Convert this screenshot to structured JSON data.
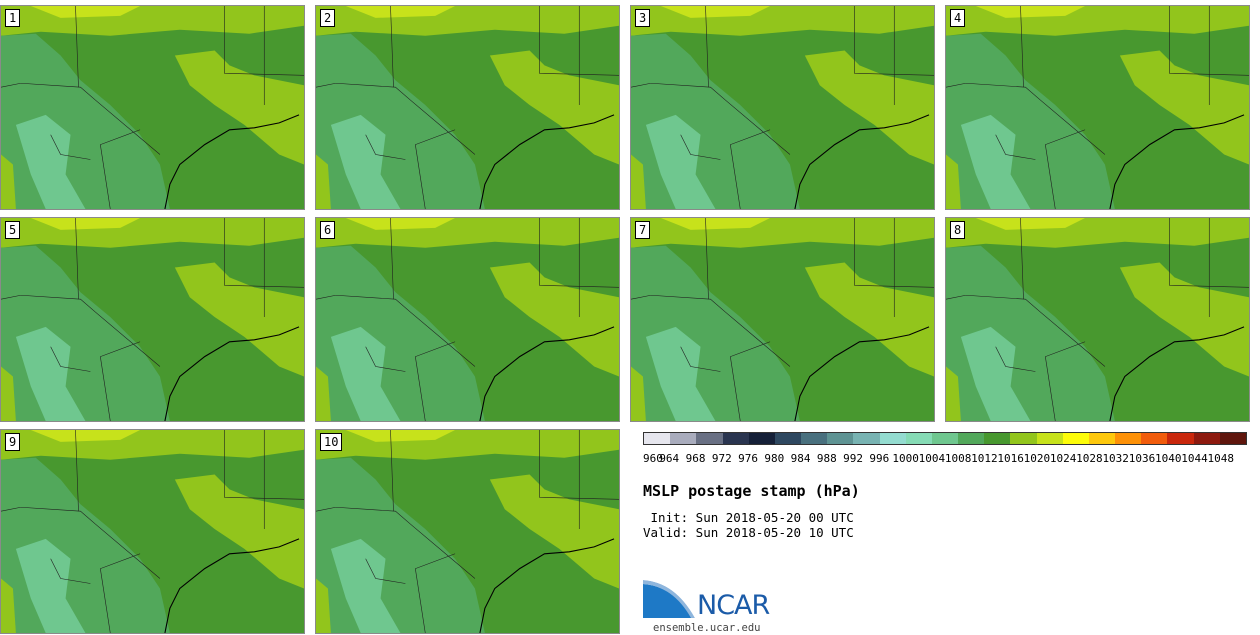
{
  "stamps": [
    {
      "label": "1"
    },
    {
      "label": "2"
    },
    {
      "label": "3"
    },
    {
      "label": "4"
    },
    {
      "label": "5"
    },
    {
      "label": "6"
    },
    {
      "label": "7"
    },
    {
      "label": "8"
    },
    {
      "label": "9"
    },
    {
      "label": "10"
    }
  ],
  "legend": {
    "colors": [
      "#e6e6ee",
      "#a9acbd",
      "#697084",
      "#2a3550",
      "#152038",
      "#2e4860",
      "#49707e",
      "#5e9393",
      "#78b3b2",
      "#94dcd0",
      "#86dbb5",
      "#6fc78f",
      "#52a85b",
      "#48982f",
      "#92c51c",
      "#c7e21b",
      "#fdfc0a",
      "#fdc80d",
      "#fd9107",
      "#f15c0c",
      "#c9270c",
      "#8d1a0f",
      "#5f160d"
    ],
    "ticks": [
      "960",
      "964",
      "968",
      "972",
      "976",
      "980",
      "984",
      "988",
      "992",
      "996",
      "1000",
      "1004",
      "1008",
      "1012",
      "1016",
      "1020",
      "1024",
      "1028",
      "1032",
      "1036",
      "1040",
      "1044",
      "1048"
    ]
  },
  "title": "MSLP postage stamp (hPa)",
  "init": " Init: Sun 2018-05-20 00 UTC",
  "valid": "Valid: Sun 2018-05-20 10 UTC",
  "logo_text": "NCAR",
  "url": "ensemble.ucar.edu"
}
